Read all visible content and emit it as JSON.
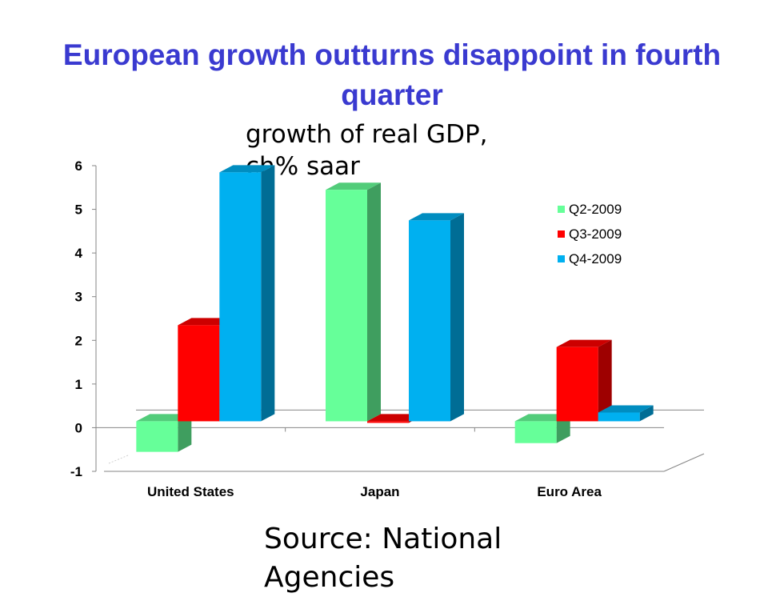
{
  "title": "European growth outturns disappoint in fourth quarter",
  "subtitle": "growth of real GDP, ch% saar",
  "source": "Source: National Agencies",
  "chart_data": {
    "type": "bar",
    "categories": [
      "United States",
      "Japan",
      "Euro Area"
    ],
    "series": [
      {
        "name": "Q2-2009",
        "values": [
          -0.7,
          5.3,
          -0.5
        ],
        "color": "#66ff99"
      },
      {
        "name": "Q3-2009",
        "values": [
          2.2,
          0.0,
          1.7
        ],
        "color": "#ff0000"
      },
      {
        "name": "Q4-2009",
        "values": [
          5.7,
          4.6,
          0.2
        ],
        "color": "#00b0f0"
      }
    ],
    "ylim": [
      -1,
      6
    ],
    "yticks": [
      "6",
      "5",
      "4",
      "3",
      "2",
      "1",
      "0",
      "-1"
    ],
    "legend_position": "right",
    "grid": false,
    "style": "3d-column"
  }
}
